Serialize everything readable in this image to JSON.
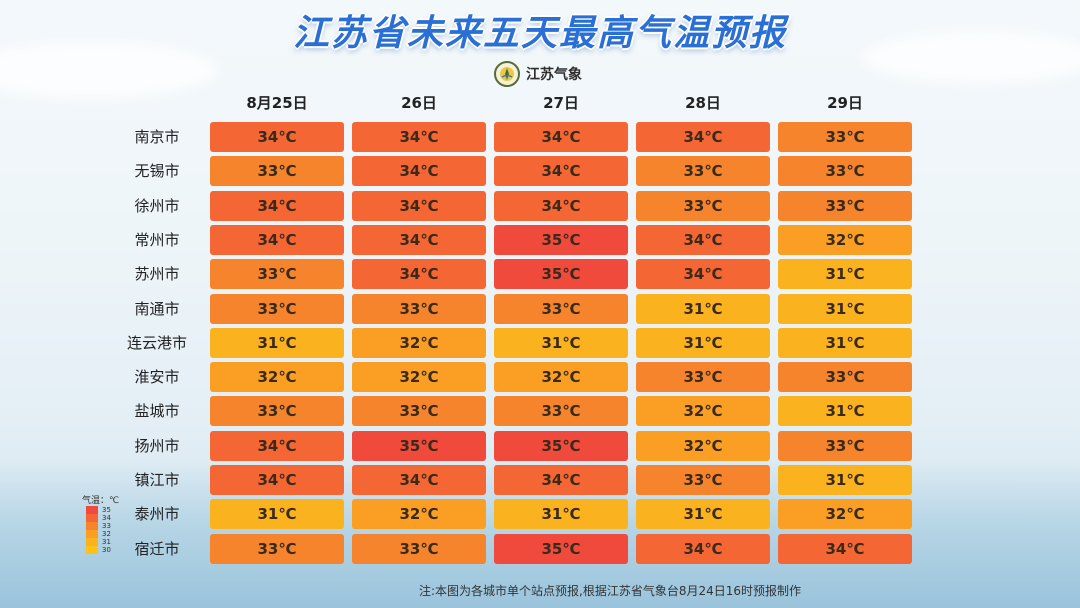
{
  "title": "江苏省未来五天最高气温预报",
  "logo": {
    "text": "江苏气象"
  },
  "days": [
    "8月25日",
    "26日",
    "27日",
    "28日",
    "29日"
  ],
  "colors": {
    "35": "#ef4a3c",
    "34": "#f46634",
    "33": "#f6842c",
    "32": "#fa9f24",
    "31": "#fbb21f"
  },
  "rows": [
    {
      "city": "南京市",
      "temps": [
        "34℃",
        "34℃",
        "34℃",
        "34℃",
        "33℃"
      ]
    },
    {
      "city": "无锡市",
      "temps": [
        "33℃",
        "34℃",
        "34℃",
        "33℃",
        "33℃"
      ]
    },
    {
      "city": "徐州市",
      "temps": [
        "34℃",
        "34℃",
        "34℃",
        "33℃",
        "33℃"
      ]
    },
    {
      "city": "常州市",
      "temps": [
        "34℃",
        "34℃",
        "35℃",
        "34℃",
        "32℃"
      ]
    },
    {
      "city": "苏州市",
      "temps": [
        "33℃",
        "34℃",
        "35℃",
        "34℃",
        "31℃"
      ]
    },
    {
      "city": "南通市",
      "temps": [
        "33℃",
        "33℃",
        "33℃",
        "31℃",
        "31℃"
      ]
    },
    {
      "city": "连云港市",
      "temps": [
        "31℃",
        "32℃",
        "31℃",
        "31℃",
        "31℃"
      ]
    },
    {
      "city": "淮安市",
      "temps": [
        "32℃",
        "32℃",
        "32℃",
        "33℃",
        "33℃"
      ]
    },
    {
      "city": "盐城市",
      "temps": [
        "33℃",
        "33℃",
        "33℃",
        "32℃",
        "31℃"
      ]
    },
    {
      "city": "扬州市",
      "temps": [
        "34℃",
        "35℃",
        "35℃",
        "32℃",
        "33℃"
      ]
    },
    {
      "city": "镇江市",
      "temps": [
        "34℃",
        "34℃",
        "34℃",
        "33℃",
        "31℃"
      ]
    },
    {
      "city": "泰州市",
      "temps": [
        "31℃",
        "32℃",
        "31℃",
        "31℃",
        "32℃"
      ]
    },
    {
      "city": "宿迁市",
      "temps": [
        "33℃",
        "33℃",
        "35℃",
        "34℃",
        "34℃"
      ]
    }
  ],
  "legend": {
    "title": "气温：℃",
    "items": [
      "35",
      "34",
      "33",
      "32",
      "31",
      "30"
    ]
  },
  "note": "注:本图为各城市单个站点预报,根据江苏省气象台8月24日16时预报制作"
}
